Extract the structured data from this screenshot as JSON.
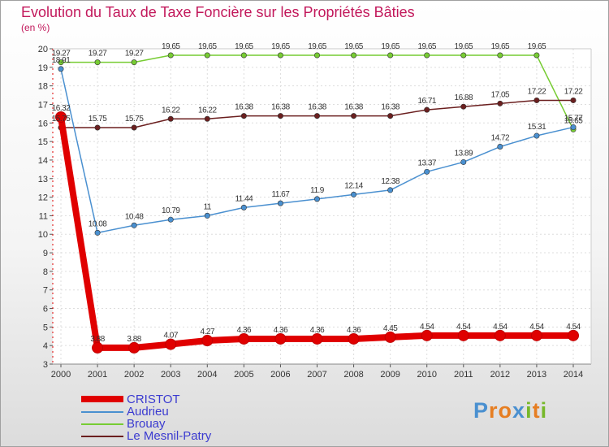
{
  "title": "Evolution du Taux de Taxe Foncière sur les Propriétés Bâties",
  "unit_label": "(en %)",
  "logo": "Proxiti",
  "chart_data": {
    "type": "line",
    "title": "Evolution du Taux de Taxe Foncière sur les Propriétés Bâties",
    "ylabel": "(en %)",
    "xlabel": "",
    "ylim": [
      3,
      20
    ],
    "yticks": [
      3,
      4,
      5,
      6,
      7,
      8,
      9,
      10,
      11,
      12,
      13,
      14,
      15,
      16,
      17,
      18,
      19,
      20
    ],
    "x": [
      2000,
      2001,
      2002,
      2003,
      2004,
      2005,
      2006,
      2007,
      2008,
      2009,
      2010,
      2011,
      2012,
      2013,
      2014
    ],
    "series": [
      {
        "name": "CRISTOT",
        "color": "#e00000",
        "values": [
          16.32,
          3.88,
          3.88,
          4.07,
          4.27,
          4.36,
          4.36,
          4.36,
          4.36,
          4.45,
          4.54,
          4.54,
          4.54,
          4.54,
          4.54
        ],
        "labels": [
          "16.32",
          "3.88",
          "3.88",
          "4.07",
          "4.27",
          "4.36",
          "4.36",
          "4.36",
          "4.36",
          "4.45",
          "4.54",
          "4.54",
          "4.54",
          "4.54",
          "4.54"
        ]
      },
      {
        "name": "Audrieu",
        "color": "#4a90d0",
        "values": [
          18.91,
          10.08,
          10.48,
          10.79,
          11,
          11.44,
          11.67,
          11.9,
          12.14,
          12.38,
          13.37,
          13.89,
          14.72,
          15.31,
          15.77
        ],
        "labels": [
          "18.91",
          "10.08",
          "10.48",
          "10.79",
          "11",
          "11.44",
          "11.67",
          "11.9",
          "12.14",
          "12.38",
          "13.37",
          "13.89",
          "14.72",
          "15.31",
          "15.77"
        ]
      },
      {
        "name": "Brouay",
        "color": "#77cc33",
        "values": [
          19.27,
          19.27,
          19.27,
          19.65,
          19.65,
          19.65,
          19.65,
          19.65,
          19.65,
          19.65,
          19.65,
          19.65,
          19.65,
          19.65,
          15.65
        ],
        "labels": [
          "19.27",
          "19.27",
          "19.27",
          "19.65",
          "19.65",
          "19.65",
          "19.65",
          "19.65",
          "19.65",
          "19.65",
          "19.65",
          "19.65",
          "19.65",
          "19.65",
          "15.65"
        ]
      },
      {
        "name": "Le Mesnil-Patry",
        "color": "#6b1f1f",
        "values": [
          15.75,
          15.75,
          15.75,
          16.22,
          16.22,
          16.38,
          16.38,
          16.38,
          16.38,
          16.38,
          16.71,
          16.88,
          17.05,
          17.22,
          17.22
        ],
        "labels": [
          "15.75",
          "15.75",
          "15.75",
          "16.22",
          "16.22",
          "16.38",
          "16.38",
          "16.38",
          "16.38",
          "16.38",
          "16.71",
          "16.88",
          "17.05",
          "17.22",
          "17.22"
        ]
      }
    ]
  }
}
